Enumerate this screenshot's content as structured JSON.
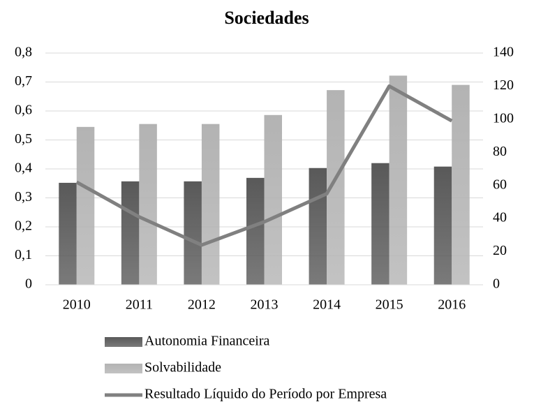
{
  "chart_data": {
    "type": "bar",
    "title": "Sociedades",
    "categories": [
      "2010",
      "2011",
      "2012",
      "2013",
      "2014",
      "2015",
      "2016"
    ],
    "series": [
      {
        "name": "Autonomia Financeira",
        "color": "#595959",
        "values": [
          0.352,
          0.357,
          0.357,
          0.369,
          0.403,
          0.42,
          0.408
        ]
      },
      {
        "name": "Solvabilidade",
        "color": "#b3b3b3",
        "values": [
          0.545,
          0.555,
          0.555,
          0.586,
          0.672,
          0.722,
          0.69
        ]
      },
      {
        "name": "Resultado Líquido do Período por Empresa",
        "color": "#808080",
        "type": "line",
        "axis": "y2",
        "values": [
          62,
          41,
          24,
          38,
          55,
          120,
          99
        ]
      }
    ],
    "ylim": [
      0,
      0.8
    ],
    "yticks": [
      0,
      {
        "value": 0.1,
        "label": "0,1"
      },
      {
        "value": 0.2,
        "label": "0,2"
      },
      {
        "value": 0.3,
        "label": "0,3"
      },
      {
        "value": 0.4,
        "label": "0,4"
      },
      {
        "value": 0.5,
        "label": "0,5"
      },
      {
        "value": 0.6,
        "label": "0,6"
      },
      {
        "value": 0.7,
        "label": "0,7"
      },
      {
        "value": 0.8,
        "label": "0,8"
      }
    ],
    "y2lim": [
      0,
      140
    ],
    "y2ticks": [
      0,
      20,
      40,
      60,
      80,
      100,
      120,
      140
    ],
    "grid": true
  }
}
